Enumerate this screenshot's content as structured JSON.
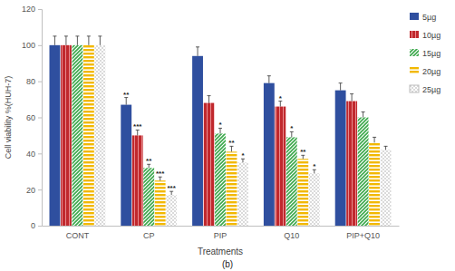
{
  "chart_data": {
    "type": "bar",
    "title": "(b)",
    "x_label": "Treatments",
    "y_label": "Cell viability %(HUH-7)",
    "categories": [
      "CONT",
      "CP",
      "PIP",
      "Q10",
      "PIP+Q10"
    ],
    "series": [
      {
        "name": "5µg",
        "color": "#2f4f9f",
        "values": [
          100,
          67,
          94,
          79,
          75
        ],
        "errors": [
          5,
          4,
          5,
          4,
          4
        ],
        "annotations": [
          null,
          "**",
          null,
          null,
          null
        ]
      },
      {
        "name": "10µg",
        "color": "#c0282d",
        "values": [
          100,
          50,
          68,
          66,
          69
        ],
        "errors": [
          5,
          3,
          4,
          3,
          4
        ],
        "annotations": [
          null,
          "***",
          null,
          "*",
          null
        ]
      },
      {
        "name": "15µg",
        "color": "#3aa84a",
        "values": [
          100,
          32,
          51,
          49,
          60
        ],
        "errors": [
          5,
          2,
          3,
          3,
          3
        ],
        "annotations": [
          null,
          "**",
          "*",
          "*",
          null
        ]
      },
      {
        "name": "20µg",
        "color": "#f2b800",
        "values": [
          100,
          25,
          41,
          37,
          46
        ],
        "errors": [
          5,
          2,
          3,
          2,
          3
        ],
        "annotations": [
          null,
          "***",
          "**",
          "**",
          null
        ]
      },
      {
        "name": "25µg",
        "color": "#9a9a9a",
        "values": [
          100,
          17,
          35,
          29,
          42
        ],
        "errors": [
          5,
          2,
          2,
          2,
          2
        ],
        "annotations": [
          null,
          "***",
          "*",
          "*",
          null
        ]
      }
    ],
    "ylim": [
      0,
      120
    ],
    "yticks": [
      0,
      20,
      40,
      60,
      80,
      100,
      120
    ],
    "grid": false,
    "legend": "right"
  }
}
